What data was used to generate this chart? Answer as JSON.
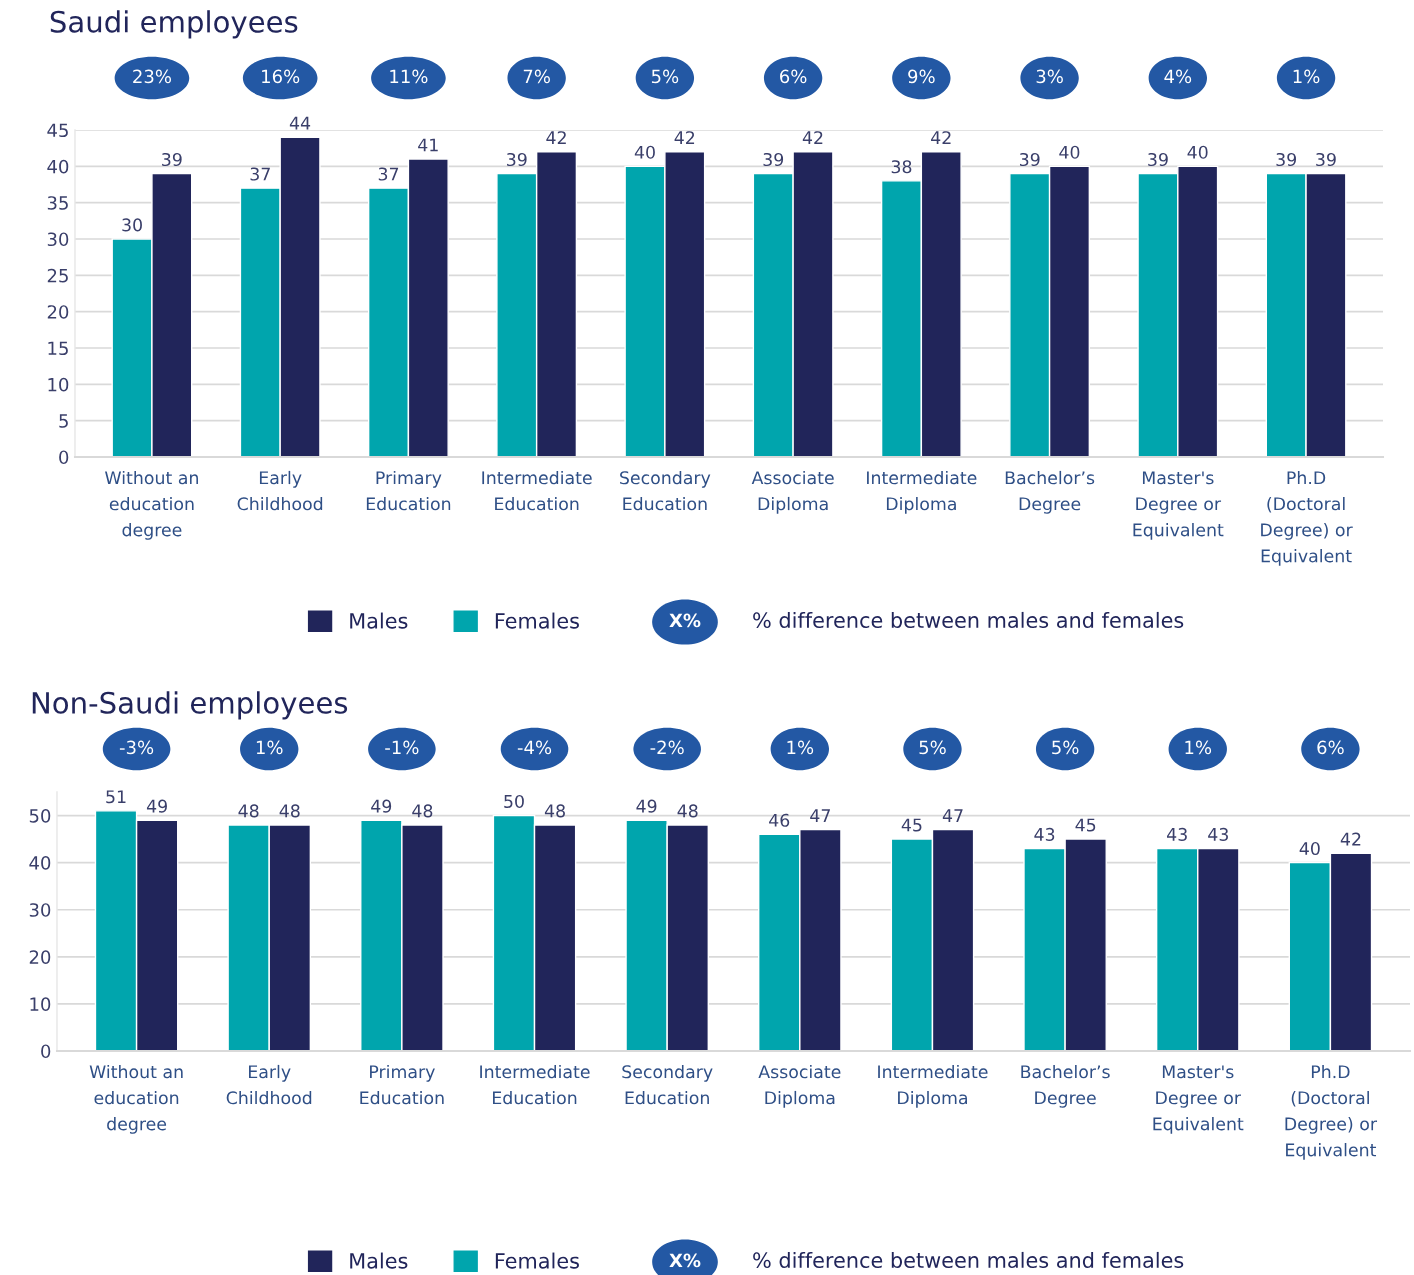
{
  "chart_data": [
    {
      "type": "bar",
      "title": "Saudi employees",
      "categories": [
        "Without an\neducation\ndegree",
        "Early\nChildhood",
        "Primary\nEducation",
        "Intermediate\nEducation",
        "Secondary\nEducation",
        "Associate\nDiploma",
        "Intermediate\nDiploma",
        "Bachelor’s\nDegree",
        "Master's\nDegree or\nEquivalent",
        "Ph.D\n(Doctoral\nDegree) or\nEquivalent"
      ],
      "series": [
        {
          "name": "Females",
          "color": "#00a5ad",
          "values": [
            30,
            37,
            37,
            39,
            40,
            39,
            38,
            39,
            39,
            39
          ]
        },
        {
          "name": "Males",
          "color": "#21255a",
          "values": [
            39,
            44,
            41,
            42,
            42,
            42,
            42,
            40,
            40,
            39
          ]
        }
      ],
      "ylim": [
        0,
        45
      ],
      "yticks": [
        0,
        5,
        10,
        15,
        20,
        25,
        30,
        35,
        40,
        45
      ],
      "grid": "y",
      "data_labels": true,
      "legend": "bottom",
      "annotations": [
        "23%",
        "16%",
        "11%",
        "7%",
        "5%",
        "6%",
        "9%",
        "3%",
        "4%",
        "1%",
        "X%",
        "% difference between males and females"
      ]
    },
    {
      "type": "bar",
      "title": "Non-Saudi employees",
      "categories": [
        "Without an\neducation\ndegree",
        "Early\nChildhood",
        "Primary\nEducation",
        "Intermediate\nEducation",
        "Secondary\nEducation",
        "Associate\nDiploma",
        "Intermediate\nDiploma",
        "Bachelor’s\nDegree",
        "Master's\nDegree or\nEquivalent",
        "Ph.D\n(Doctoral\nDegree) or\nEquivalent"
      ],
      "series": [
        {
          "name": "Females",
          "color": "#00a5ad",
          "values": [
            51,
            48,
            49,
            50,
            49,
            46,
            45,
            43,
            43,
            40
          ]
        },
        {
          "name": "Males",
          "color": "#21255a",
          "values": [
            49,
            48,
            48,
            48,
            48,
            47,
            47,
            45,
            43,
            42
          ]
        }
      ],
      "ylim": [
        0,
        55
      ],
      "yticks": [
        0,
        10,
        20,
        30,
        40,
        50
      ],
      "grid": "y",
      "data_labels": true,
      "legend": "bottom",
      "annotations": [
        "-3%",
        "1%",
        "-1%",
        "-4%",
        "-2%",
        "1%",
        "5%",
        "5%",
        "1%",
        "6%",
        "X%",
        "% difference between males and females"
      ]
    }
  ]
}
